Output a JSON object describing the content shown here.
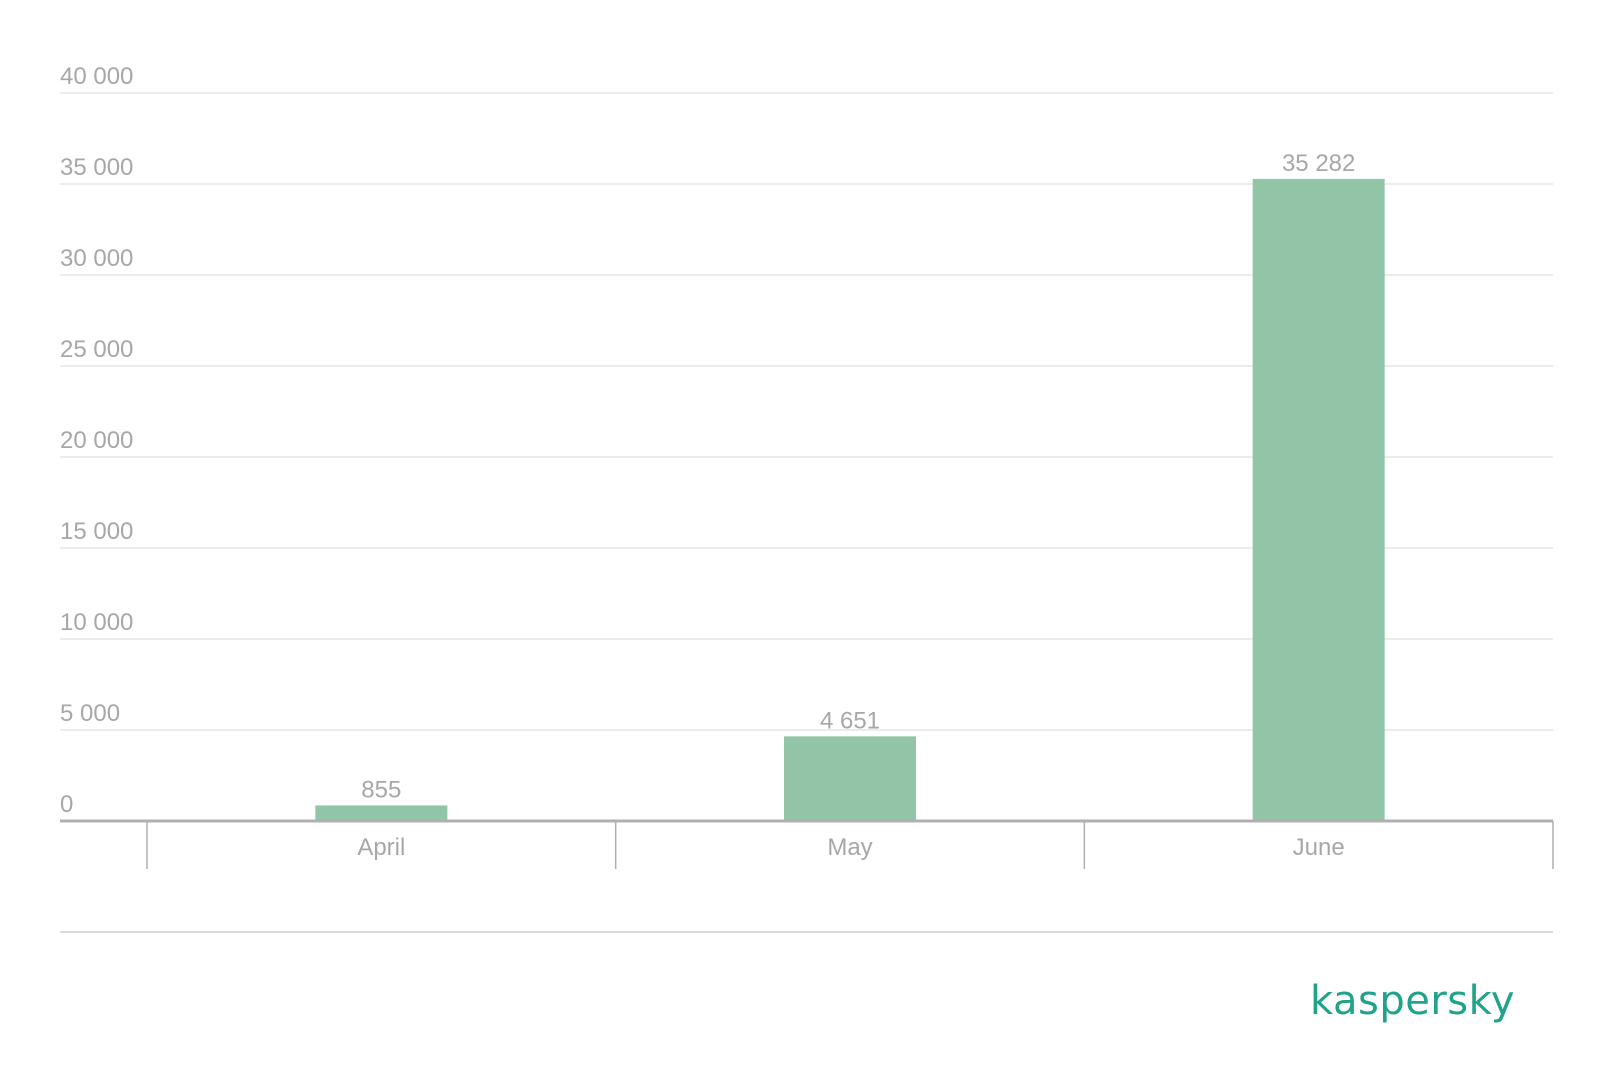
{
  "chart_data": {
    "type": "bar",
    "title": "",
    "xlabel": "",
    "ylabel": "",
    "categories": [
      "April",
      "May",
      "June"
    ],
    "values": [
      855,
      4651,
      35282
    ],
    "value_labels": [
      "855",
      "4 651",
      "35 282"
    ],
    "ylim": [
      0,
      40000
    ],
    "yticks": [
      0,
      5000,
      10000,
      15000,
      20000,
      25000,
      30000,
      35000,
      40000
    ],
    "ytick_labels": [
      "0",
      "5 000",
      "10 000",
      "15 000",
      "20 000",
      "25 000",
      "30 000",
      "35 000",
      "40 000"
    ],
    "grid": true,
    "legend": "none",
    "bar_color": "#92c5a8",
    "grid_color": "#e6e6e6",
    "axis_color": "#b0b0b0",
    "text_color": "#a7a7a7"
  },
  "logo": {
    "text": "kaspersky",
    "color": "#1fa38a"
  }
}
